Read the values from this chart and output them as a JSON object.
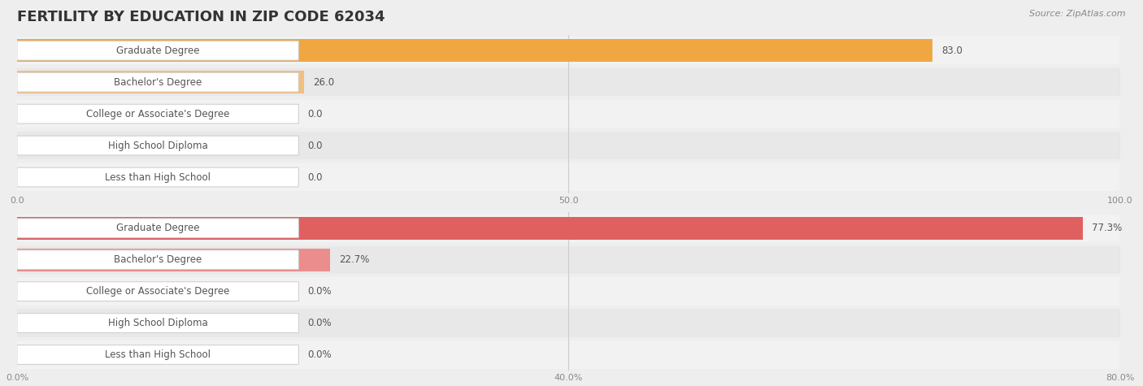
{
  "title": "FERTILITY BY EDUCATION IN ZIP CODE 62034",
  "source": "Source: ZipAtlas.com",
  "label_color": "#555555",
  "bg_color": "#eeeeee",
  "title_fontsize": 13,
  "label_fontsize": 8.5,
  "value_fontsize": 8.5,
  "tick_fontsize": 8,
  "source_fontsize": 8,
  "chart1": {
    "categories": [
      "Less than High School",
      "High School Diploma",
      "College or Associate's Degree",
      "Bachelor's Degree",
      "Graduate Degree"
    ],
    "values": [
      0.0,
      0.0,
      0.0,
      26.0,
      83.0
    ],
    "value_labels": [
      "0.0",
      "0.0",
      "0.0",
      "26.0",
      "83.0"
    ],
    "xlim": [
      0,
      100
    ],
    "xticks": [
      0.0,
      50.0,
      100.0
    ],
    "xtick_labels": [
      "0.0",
      "50.0",
      "100.0"
    ],
    "bar_color_low": "#f5c99a",
    "bar_color_high": "#f0a742",
    "row_bg_colors": [
      "#f2f2f2",
      "#e8e8e8",
      "#f2f2f2",
      "#e8e8e8",
      "#f2f2f2"
    ]
  },
  "chart2": {
    "categories": [
      "Less than High School",
      "High School Diploma",
      "College or Associate's Degree",
      "Bachelor's Degree",
      "Graduate Degree"
    ],
    "values": [
      0.0,
      0.0,
      0.0,
      22.7,
      77.3
    ],
    "value_labels": [
      "0.0%",
      "0.0%",
      "0.0%",
      "22.7%",
      "77.3%"
    ],
    "xlim": [
      0,
      80
    ],
    "xticks": [
      0.0,
      40.0,
      80.0
    ],
    "xtick_labels": [
      "0.0%",
      "40.0%",
      "80.0%"
    ],
    "bar_color_low": "#f0a0a0",
    "bar_color_high": "#e06060",
    "row_bg_colors": [
      "#f2f2f2",
      "#e8e8e8",
      "#f2f2f2",
      "#e8e8e8",
      "#f2f2f2"
    ]
  }
}
